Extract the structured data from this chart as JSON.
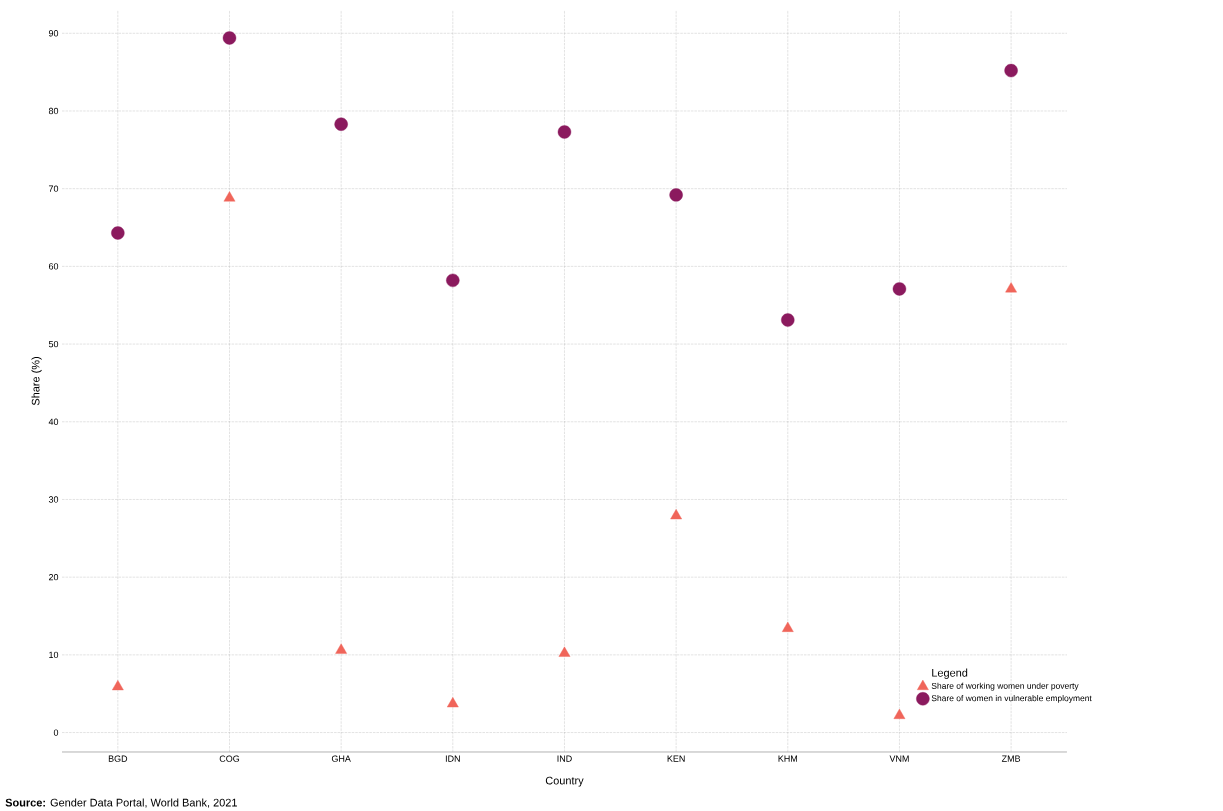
{
  "chart_data": {
    "type": "scatter",
    "categories": [
      "BGD",
      "COG",
      "GHA",
      "IDN",
      "IND",
      "KEN",
      "KHM",
      "VNM",
      "ZMB"
    ],
    "series": [
      {
        "name": "Share of working women under poverty",
        "color": "#f0655a",
        "marker": "triangle",
        "values": [
          5.9,
          68.8,
          10.6,
          3.7,
          10.2,
          27.9,
          13.4,
          2.2,
          57.1
        ]
      },
      {
        "name": "Share of women in vulnerable employment",
        "color": "#8b1a5e",
        "marker": "circle",
        "values": [
          64.3,
          89.4,
          78.3,
          58.2,
          77.3,
          69.2,
          53.1,
          57.1,
          85.2
        ]
      }
    ],
    "xlabel": "Country",
    "ylabel": "Share (%)",
    "legend_title": "Legend",
    "ylim": [
      -2.5,
      93
    ],
    "yticks": [
      0,
      10,
      20,
      30,
      40,
      50,
      60,
      70,
      80,
      90
    ],
    "grid": true,
    "legend": "bottom right",
    "annotations": [
      "**Source:** Gender Data Portal, World Bank, 2021"
    ]
  }
}
